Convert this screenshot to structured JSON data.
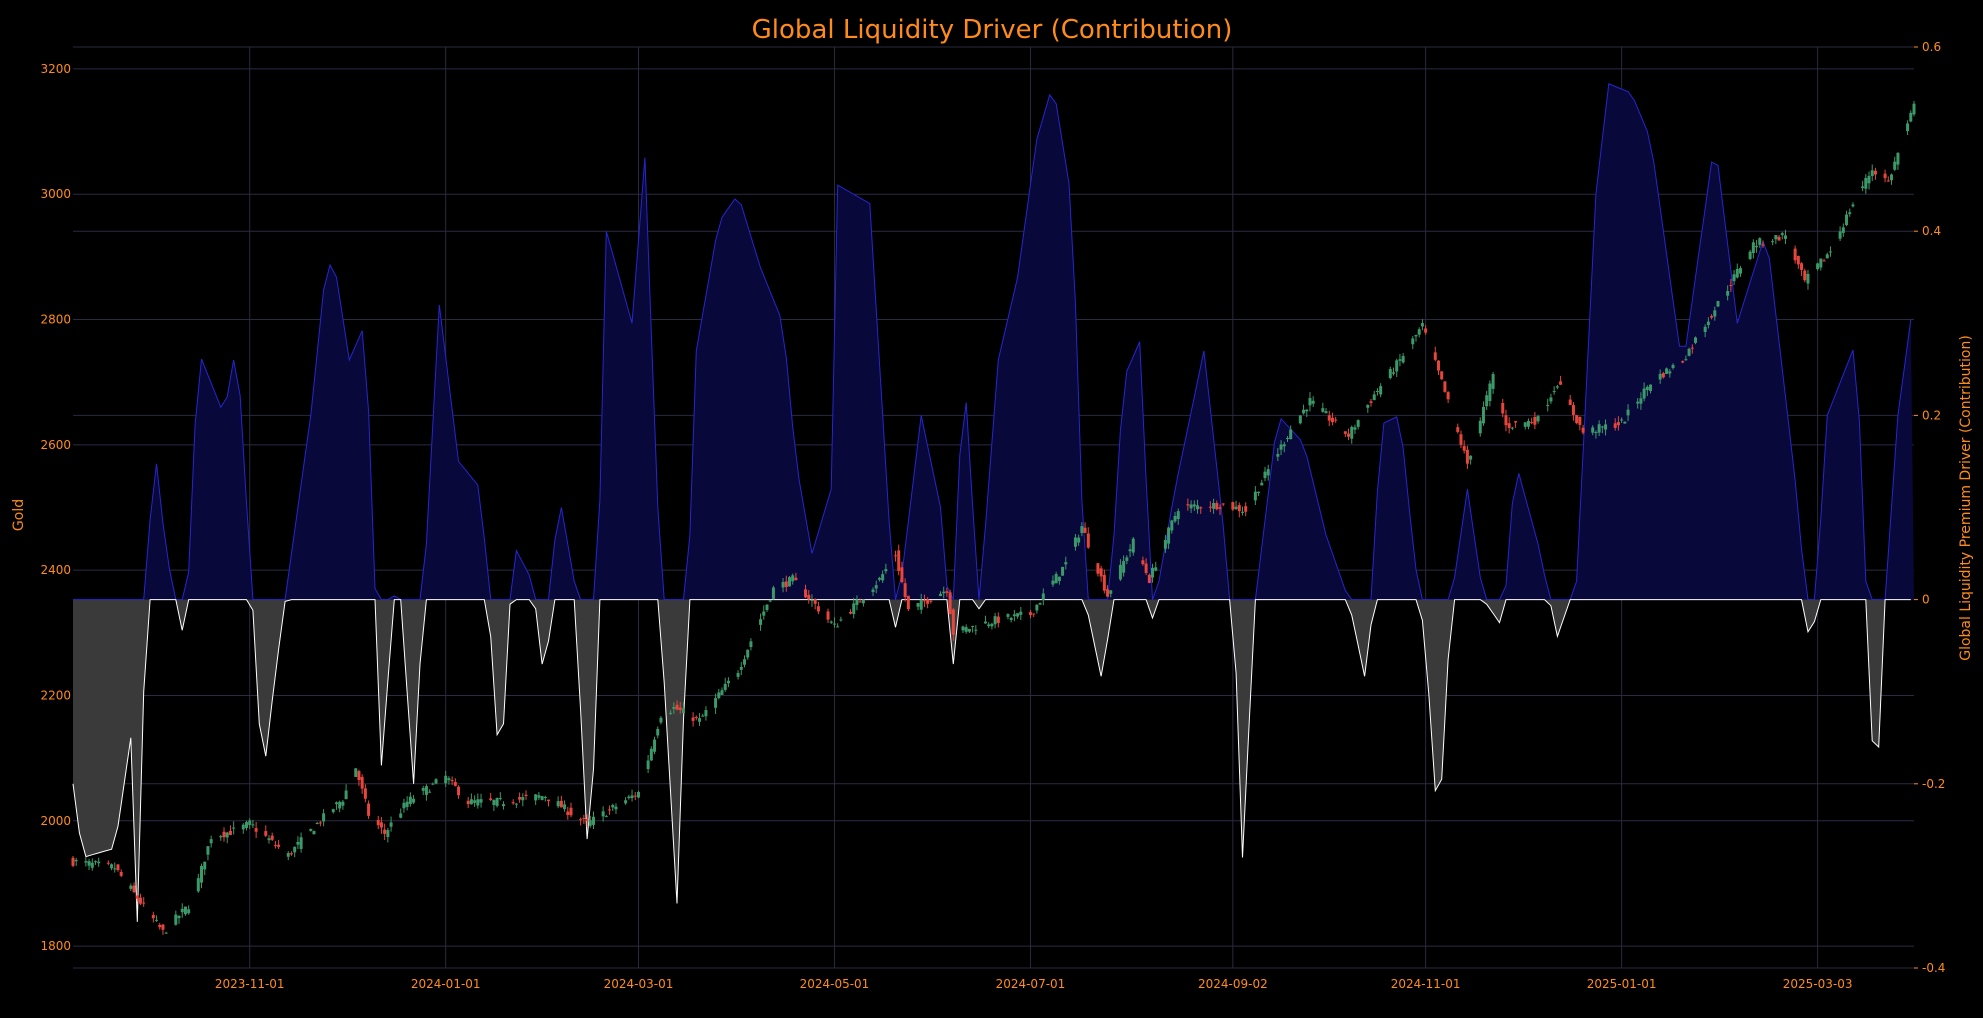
{
  "chart_data": {
    "type": "candlestick+area",
    "title": "Global Liquidity Driver (Contribution)",
    "ylabel_left": "Gold",
    "ylabel_right": "Global Liquidity Premium Driver (Contribution)",
    "ylim_left": [
      1765,
      3235
    ],
    "yticks_left": [
      1800,
      2000,
      2200,
      2400,
      2600,
      2800,
      3000,
      3200
    ],
    "ylim_right": [
      -0.4,
      0.6
    ],
    "yticks_right": [
      -0.4,
      -0.2,
      0,
      0.2,
      0.4,
      0.6
    ],
    "x_range": [
      "2023-09-07",
      "2025-04-02"
    ],
    "xticks": [
      "2023-11-01",
      "2024-01-01",
      "2024-03-01",
      "2024-05-01",
      "2024-07-01",
      "2024-09-02",
      "2024-11-01",
      "2025-01-01",
      "2025-03-03"
    ],
    "grid": true,
    "colors": {
      "background": "#000000",
      "text": "#ff8c1a",
      "grid": "#2a2a40",
      "up_candle": "#3c9a6a",
      "down_candle": "#e8453c",
      "positive_fill": "#08083a",
      "positive_line": "#2626d0",
      "negative_fill": "#3a3a3a",
      "negative_line": "#ffffff"
    },
    "gold_anchors": [
      [
        "2023-09-07",
        1935
      ],
      [
        "2023-09-20",
        1925
      ],
      [
        "2023-10-05",
        1822
      ],
      [
        "2023-10-14",
        1870
      ],
      [
        "2023-10-20",
        1975
      ],
      [
        "2023-10-28",
        1985
      ],
      [
        "2023-11-01",
        1995
      ],
      [
        "2023-11-13",
        1945
      ],
      [
        "2023-11-22",
        1995
      ],
      [
        "2023-11-30",
        2035
      ],
      [
        "2023-12-04",
        2085
      ],
      [
        "2023-12-08",
        2010
      ],
      [
        "2023-12-13",
        1980
      ],
      [
        "2023-12-20",
        2030
      ],
      [
        "2024-01-01",
        2070
      ],
      [
        "2024-01-08",
        2030
      ],
      [
        "2024-01-18",
        2030
      ],
      [
        "2024-02-01",
        2040
      ],
      [
        "2024-02-14",
        1995
      ],
      [
        "2024-03-01",
        2045
      ],
      [
        "2024-03-08",
        2170
      ],
      [
        "2024-03-12",
        2180
      ],
      [
        "2024-03-20",
        2160
      ],
      [
        "2024-04-01",
        2240
      ],
      [
        "2024-04-12",
        2370
      ],
      [
        "2024-04-18",
        2385
      ],
      [
        "2024-05-01",
        2310
      ],
      [
        "2024-05-15",
        2385
      ],
      [
        "2024-05-20",
        2425
      ],
      [
        "2024-05-24",
        2335
      ],
      [
        "2024-06-05",
        2370
      ],
      [
        "2024-06-07",
        2300
      ],
      [
        "2024-06-20",
        2320
      ],
      [
        "2024-07-01",
        2330
      ],
      [
        "2024-07-12",
        2410
      ],
      [
        "2024-07-17",
        2470
      ],
      [
        "2024-07-25",
        2360
      ],
      [
        "2024-08-02",
        2445
      ],
      [
        "2024-08-07",
        2385
      ],
      [
        "2024-08-16",
        2500
      ],
      [
        "2024-08-30",
        2505
      ],
      [
        "2024-09-06",
        2495
      ],
      [
        "2024-09-20",
        2625
      ],
      [
        "2024-09-26",
        2670
      ],
      [
        "2024-10-08",
        2615
      ],
      [
        "2024-10-16",
        2680
      ],
      [
        "2024-10-24",
        2735
      ],
      [
        "2024-10-31",
        2790
      ],
      [
        "2024-11-06",
        2700
      ],
      [
        "2024-11-14",
        2570
      ],
      [
        "2024-11-22",
        2710
      ],
      [
        "2024-11-26",
        2630
      ],
      [
        "2024-12-06",
        2640
      ],
      [
        "2024-12-12",
        2700
      ],
      [
        "2024-12-20",
        2620
      ],
      [
        "2025-01-01",
        2635
      ],
      [
        "2025-01-10",
        2700
      ],
      [
        "2025-01-20",
        2735
      ],
      [
        "2025-02-03",
        2850
      ],
      [
        "2025-02-11",
        2920
      ],
      [
        "2025-02-21",
        2935
      ],
      [
        "2025-02-27",
        2860
      ],
      [
        "2025-03-07",
        2910
      ],
      [
        "2025-03-14",
        2985
      ],
      [
        "2025-03-20",
        3040
      ],
      [
        "2025-03-25",
        3020
      ],
      [
        "2025-04-02",
        3140
      ]
    ],
    "driver_anchors": [
      [
        "2023-09-07",
        -0.2
      ],
      [
        "2023-09-10",
        -0.28
      ],
      [
        "2023-09-20",
        -0.27
      ],
      [
        "2023-09-25",
        -0.15
      ],
      [
        "2023-09-27",
        -0.35
      ],
      [
        "2023-09-29",
        -0.1
      ],
      [
        "2023-10-02",
        0.18
      ],
      [
        "2023-10-06",
        0.05
      ],
      [
        "2023-10-12",
        -0.05
      ],
      [
        "2023-10-16",
        0.27
      ],
      [
        "2023-10-24",
        0.2
      ],
      [
        "2023-10-28",
        0.28
      ],
      [
        "2023-11-03",
        -0.07
      ],
      [
        "2023-11-05",
        -0.2
      ],
      [
        "2023-11-09",
        -0.08
      ],
      [
        "2023-11-14",
        0.05
      ],
      [
        "2023-11-20",
        0.2
      ],
      [
        "2023-11-25",
        0.37
      ],
      [
        "2023-11-28",
        0.35
      ],
      [
        "2023-12-02",
        0.26
      ],
      [
        "2023-12-07",
        0.3
      ],
      [
        "2023-12-12",
        -0.18
      ],
      [
        "2023-12-17",
        0.05
      ],
      [
        "2023-12-22",
        -0.2
      ],
      [
        "2023-12-30",
        0.32
      ],
      [
        "2024-01-05",
        0.15
      ],
      [
        "2024-01-12",
        0.12
      ],
      [
        "2024-01-18",
        -0.2
      ],
      [
        "2024-01-22",
        0.06
      ],
      [
        "2024-01-28",
        0.02
      ],
      [
        "2024-02-01",
        -0.1
      ],
      [
        "2024-02-05",
        0.12
      ],
      [
        "2024-02-10",
        0.02
      ],
      [
        "2024-02-15",
        -0.33
      ],
      [
        "2024-02-20",
        0.4
      ],
      [
        "2024-02-24",
        0.35
      ],
      [
        "2024-02-28",
        0.3
      ],
      [
        "2024-03-03",
        0.48
      ],
      [
        "2024-03-09",
        -0.09
      ],
      [
        "2024-03-13",
        -0.33
      ],
      [
        "2024-03-19",
        0.27
      ],
      [
        "2024-03-26",
        0.41
      ],
      [
        "2024-04-01",
        0.44
      ],
      [
        "2024-04-08",
        0.36
      ],
      [
        "2024-04-15",
        0.3
      ],
      [
        "2024-04-19",
        0.15
      ],
      [
        "2024-04-24",
        0.05
      ],
      [
        "2024-04-30",
        0.12
      ],
      [
        "2024-05-02",
        0.45
      ],
      [
        "2024-05-12",
        0.43
      ],
      [
        "2024-05-20",
        -0.03
      ],
      [
        "2024-05-28",
        0.2
      ],
      [
        "2024-06-03",
        0.1
      ],
      [
        "2024-06-07",
        -0.07
      ],
      [
        "2024-06-10",
        0.27
      ],
      [
        "2024-06-15",
        -0.01
      ],
      [
        "2024-06-21",
        0.26
      ],
      [
        "2024-06-27",
        0.35
      ],
      [
        "2024-07-03",
        0.5
      ],
      [
        "2024-07-08",
        0.56
      ],
      [
        "2024-07-14",
        0.43
      ],
      [
        "2024-07-18",
        0.0
      ],
      [
        "2024-07-24",
        -0.1
      ],
      [
        "2024-07-30",
        0.24
      ],
      [
        "2024-08-04",
        0.28
      ],
      [
        "2024-08-08",
        -0.02
      ],
      [
        "2024-08-15",
        0.12
      ],
      [
        "2024-08-24",
        0.27
      ],
      [
        "2024-08-30",
        0.08
      ],
      [
        "2024-09-03",
        -0.08
      ],
      [
        "2024-09-05",
        -0.28
      ],
      [
        "2024-09-09",
        0.0
      ],
      [
        "2024-09-16",
        0.2
      ],
      [
        "2024-09-24",
        0.17
      ],
      [
        "2024-10-01",
        0.07
      ],
      [
        "2024-10-08",
        0.0
      ],
      [
        "2024-10-14",
        -0.1
      ],
      [
        "2024-10-18",
        0.19
      ],
      [
        "2024-10-24",
        0.2
      ],
      [
        "2024-10-28",
        0.06
      ],
      [
        "2024-11-01",
        -0.05
      ],
      [
        "2024-11-05",
        -0.26
      ],
      [
        "2024-11-09",
        0.0
      ],
      [
        "2024-11-14",
        0.12
      ],
      [
        "2024-11-19",
        0.0
      ],
      [
        "2024-11-25",
        -0.03
      ],
      [
        "2024-11-29",
        0.15
      ],
      [
        "2024-12-06",
        0.06
      ],
      [
        "2024-12-12",
        -0.04
      ],
      [
        "2024-12-18",
        0.02
      ],
      [
        "2024-12-24",
        0.44
      ],
      [
        "2024-12-28",
        0.56
      ],
      [
        "2025-01-04",
        0.55
      ],
      [
        "2025-01-10",
        0.5
      ],
      [
        "2025-01-20",
        0.25
      ],
      [
        "2025-01-30",
        0.5
      ],
      [
        "2025-02-06",
        0.3
      ],
      [
        "2025-02-15",
        0.4
      ],
      [
        "2025-02-25",
        0.1
      ],
      [
        "2025-03-01",
        -0.08
      ],
      [
        "2025-03-06",
        0.2
      ],
      [
        "2025-03-15",
        0.28
      ],
      [
        "2025-03-21",
        -0.24
      ],
      [
        "2025-03-24",
        0.0
      ],
      [
        "2025-03-28",
        0.2
      ],
      [
        "2025-04-02",
        0.33
      ]
    ]
  }
}
